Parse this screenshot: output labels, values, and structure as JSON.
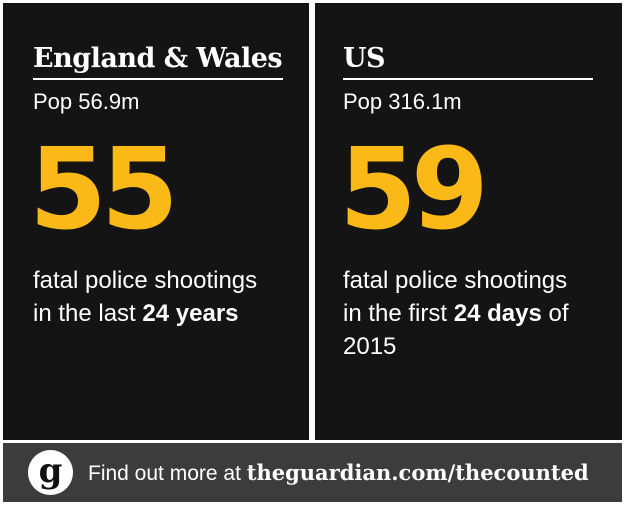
{
  "panels": [
    {
      "title": "England & Wales",
      "population": "Pop 56.9m",
      "number": 55,
      "description": [
        [
          {
            "text": "fatal police shootings",
            "bold": false
          }
        ],
        [
          {
            "text": "in the last ",
            "bold": false
          },
          {
            "text": "24 years",
            "bold": true
          }
        ]
      ]
    },
    {
      "title": "US",
      "population": "Pop 316.1m",
      "number": 59,
      "description": [
        [
          {
            "text": "fatal police shootings",
            "bold": false
          }
        ],
        [
          {
            "text": "in the first ",
            "bold": false
          },
          {
            "text": "24 days",
            "bold": true
          },
          {
            "text": " of",
            "bold": false
          }
        ],
        [
          {
            "text": "2015",
            "bold": false
          }
        ]
      ]
    }
  ],
  "footer": {
    "logo": "g",
    "text": [
      {
        "text": "Find out more at ",
        "bold": false
      },
      {
        "text": "theguardian.com/thecounted",
        "bold": true
      }
    ]
  }
}
